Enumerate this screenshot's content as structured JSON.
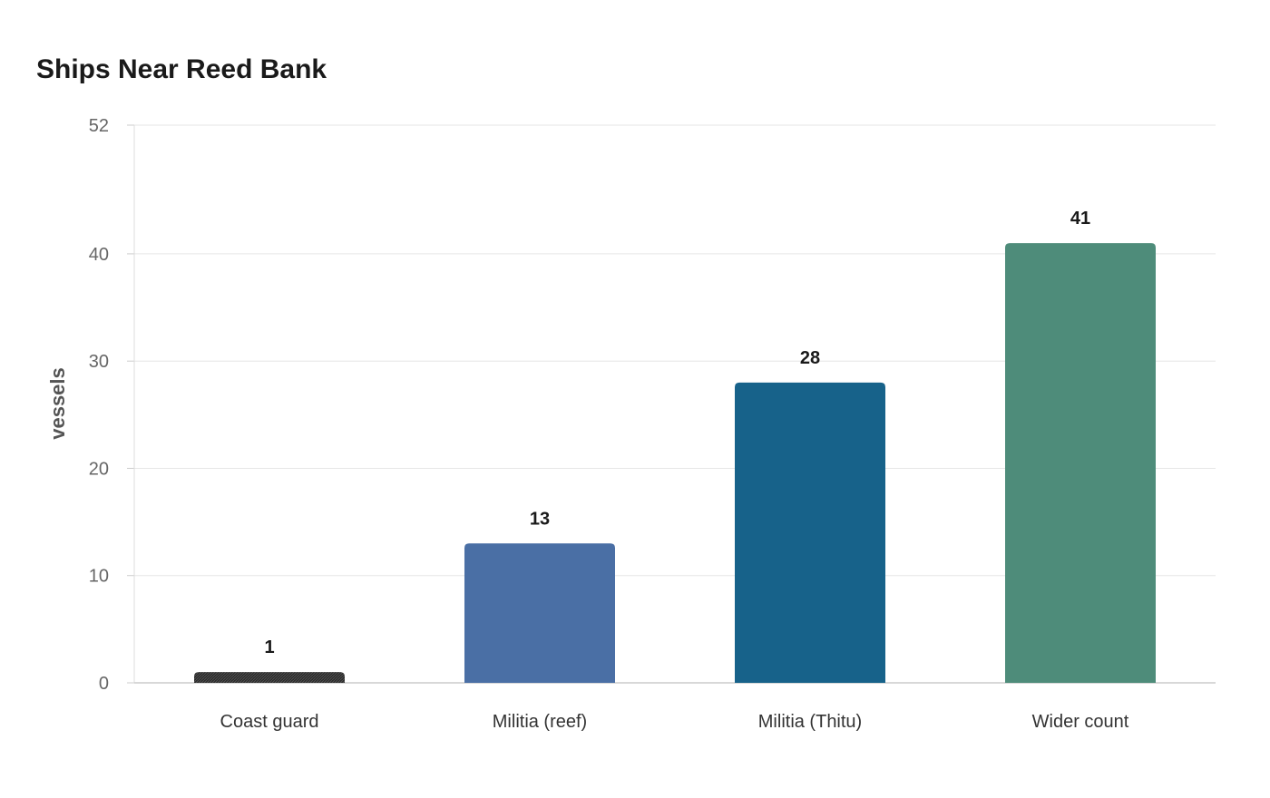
{
  "chart_data": {
    "type": "bar",
    "title": "Ships Near Reed Bank",
    "xlabel": "",
    "ylabel": "vessels",
    "categories": [
      "Coast guard",
      "Militia (reef)",
      "Militia (Thitu)",
      "Wider count"
    ],
    "values": [
      1,
      13,
      28,
      41
    ],
    "data_labels": [
      "1",
      "13",
      "28",
      "41"
    ],
    "ylim": [
      0,
      52
    ],
    "yticks": [
      0,
      10,
      20,
      30,
      40,
      52
    ],
    "grid": true,
    "legend": "none",
    "colors": [
      "#2b2b2b",
      "#4a6fa5",
      "#17628a",
      "#4e8c7a"
    ]
  }
}
